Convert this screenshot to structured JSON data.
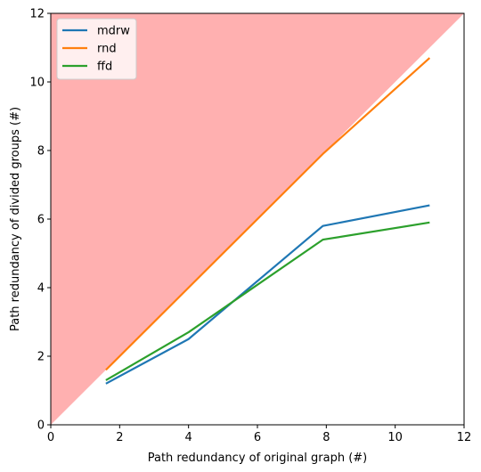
{
  "chart_data": {
    "type": "line",
    "title": "",
    "xlabel": "Path redundancy of original graph (#)",
    "ylabel": "Path redundancy of divided groups (#)",
    "xlim": [
      0,
      12
    ],
    "ylim": [
      0,
      12
    ],
    "xticks": [
      "0",
      "2",
      "4",
      "6",
      "8",
      "10",
      "12"
    ],
    "yticks": [
      "0",
      "2",
      "4",
      "6",
      "8",
      "10",
      "12"
    ],
    "grid": false,
    "legend_position": "upper-left",
    "shaded_region": {
      "description_shape": "area above y = x",
      "color": "#ffb0b0"
    },
    "series": [
      {
        "name": "mdrw",
        "color": "#1f77b4",
        "x": [
          1.6,
          4.0,
          7.9,
          11.0
        ],
        "y": [
          1.2,
          2.5,
          5.8,
          6.4
        ]
      },
      {
        "name": "rnd",
        "color": "#ff7f0e",
        "x": [
          1.6,
          4.0,
          7.9,
          11.0
        ],
        "y": [
          1.6,
          4.0,
          7.9,
          10.7
        ]
      },
      {
        "name": "ffd",
        "color": "#2ca02c",
        "x": [
          1.6,
          4.0,
          7.9,
          11.0
        ],
        "y": [
          1.3,
          2.7,
          5.4,
          5.9
        ]
      }
    ]
  }
}
